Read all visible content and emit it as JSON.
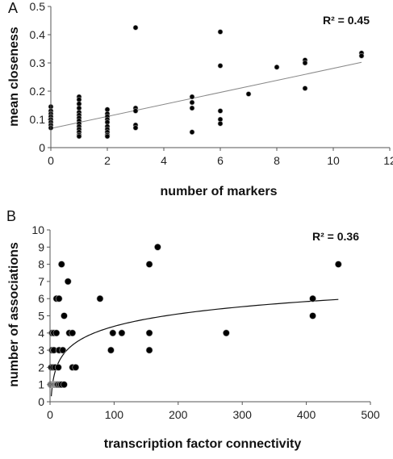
{
  "chart_data": [
    {
      "type": "scatter",
      "panel": "A",
      "annotation": "R² = 0.45",
      "xlabel": "number of markers",
      "ylabel": "mean closeness",
      "xlim": [
        0,
        12
      ],
      "ylim": [
        0,
        0.5
      ],
      "xticks": [
        0,
        2,
        4,
        6,
        8,
        10,
        12
      ],
      "yticks": [
        0,
        0.1,
        0.2,
        0.3,
        0.4,
        0.5
      ],
      "xtick_labels": [
        "0",
        "2",
        "4",
        "6",
        "8",
        "10",
        "12"
      ],
      "ytick_labels": [
        "0",
        "0.1",
        "0.2",
        "0.3",
        "0.4",
        "0.5"
      ],
      "grid": false,
      "points": [
        [
          0,
          0.145
        ],
        [
          0,
          0.13
        ],
        [
          0,
          0.12
        ],
        [
          0,
          0.11
        ],
        [
          0,
          0.1
        ],
        [
          0,
          0.09
        ],
        [
          0,
          0.08
        ],
        [
          0,
          0.07
        ],
        [
          1,
          0.18
        ],
        [
          1,
          0.17
        ],
        [
          1,
          0.155
        ],
        [
          1,
          0.14
        ],
        [
          1,
          0.125
        ],
        [
          1,
          0.115
        ],
        [
          1,
          0.105
        ],
        [
          1,
          0.095
        ],
        [
          1,
          0.085
        ],
        [
          1,
          0.075
        ],
        [
          1,
          0.065
        ],
        [
          1,
          0.055
        ],
        [
          1,
          0.045
        ],
        [
          1,
          0.04
        ],
        [
          2,
          0.135
        ],
        [
          2,
          0.12
        ],
        [
          2,
          0.11
        ],
        [
          2,
          0.1
        ],
        [
          2,
          0.09
        ],
        [
          2,
          0.075
        ],
        [
          2,
          0.065
        ],
        [
          2,
          0.055
        ],
        [
          2,
          0.045
        ],
        [
          2,
          0.04
        ],
        [
          3,
          0.425
        ],
        [
          3,
          0.14
        ],
        [
          3,
          0.13
        ],
        [
          3,
          0.08
        ],
        [
          3,
          0.07
        ],
        [
          5,
          0.18
        ],
        [
          5,
          0.16
        ],
        [
          5,
          0.14
        ],
        [
          5,
          0.055
        ],
        [
          6,
          0.41
        ],
        [
          6,
          0.29
        ],
        [
          6,
          0.13
        ],
        [
          6,
          0.1
        ],
        [
          6,
          0.085
        ],
        [
          7,
          0.19
        ],
        [
          8,
          0.285
        ],
        [
          9,
          0.31
        ],
        [
          9,
          0.3
        ],
        [
          9,
          0.21
        ],
        [
          11,
          0.335
        ],
        [
          11,
          0.325
        ]
      ],
      "fit": {
        "type": "linear",
        "from": [
          0,
          0.068
        ],
        "to": [
          11,
          0.302
        ]
      }
    },
    {
      "type": "scatter",
      "panel": "B",
      "annotation": "R² = 0.36",
      "xlabel": "transcription factor connectivity",
      "ylabel": "number of associations",
      "xlim": [
        0,
        500
      ],
      "ylim": [
        0,
        10
      ],
      "xticks": [
        0,
        100,
        200,
        300,
        400,
        500
      ],
      "yticks": [
        0,
        1,
        2,
        3,
        4,
        5,
        6,
        7,
        8,
        9,
        10
      ],
      "xtick_labels": [
        "0",
        "100",
        "200",
        "300",
        "400",
        "500"
      ],
      "ytick_labels": [
        "0",
        "1",
        "2",
        "3",
        "4",
        "5",
        "6",
        "7",
        "8",
        "9",
        "10"
      ],
      "grid": false,
      "points": [
        [
          1,
          1
        ],
        [
          2,
          1
        ],
        [
          3,
          1
        ],
        [
          4,
          1
        ],
        [
          5,
          1
        ],
        [
          6,
          1
        ],
        [
          7,
          1
        ],
        [
          8,
          1
        ],
        [
          9,
          1
        ],
        [
          10,
          1
        ],
        [
          11,
          1
        ],
        [
          12,
          1
        ],
        [
          14,
          1
        ],
        [
          16,
          1
        ],
        [
          18,
          1
        ],
        [
          22,
          1
        ],
        [
          2,
          2
        ],
        [
          5,
          2
        ],
        [
          8,
          2
        ],
        [
          13,
          2
        ],
        [
          35,
          2
        ],
        [
          40,
          2
        ],
        [
          3,
          3
        ],
        [
          6,
          3
        ],
        [
          14,
          3
        ],
        [
          20,
          3
        ],
        [
          95,
          3
        ],
        [
          155,
          3
        ],
        [
          3,
          4
        ],
        [
          6,
          4
        ],
        [
          10,
          4
        ],
        [
          30,
          4
        ],
        [
          35,
          4
        ],
        [
          98,
          4
        ],
        [
          112,
          4
        ],
        [
          155,
          4
        ],
        [
          275,
          4
        ],
        [
          22,
          5
        ],
        [
          410,
          5
        ],
        [
          10,
          6
        ],
        [
          14,
          6
        ],
        [
          78,
          6
        ],
        [
          410,
          6
        ],
        [
          28,
          7
        ],
        [
          18,
          8
        ],
        [
          155,
          8
        ],
        [
          450,
          8
        ],
        [
          168,
          9
        ]
      ],
      "fit": {
        "type": "log",
        "a": 1.04,
        "b": -0.401,
        "xrange": [
          2,
          450
        ]
      }
    }
  ]
}
